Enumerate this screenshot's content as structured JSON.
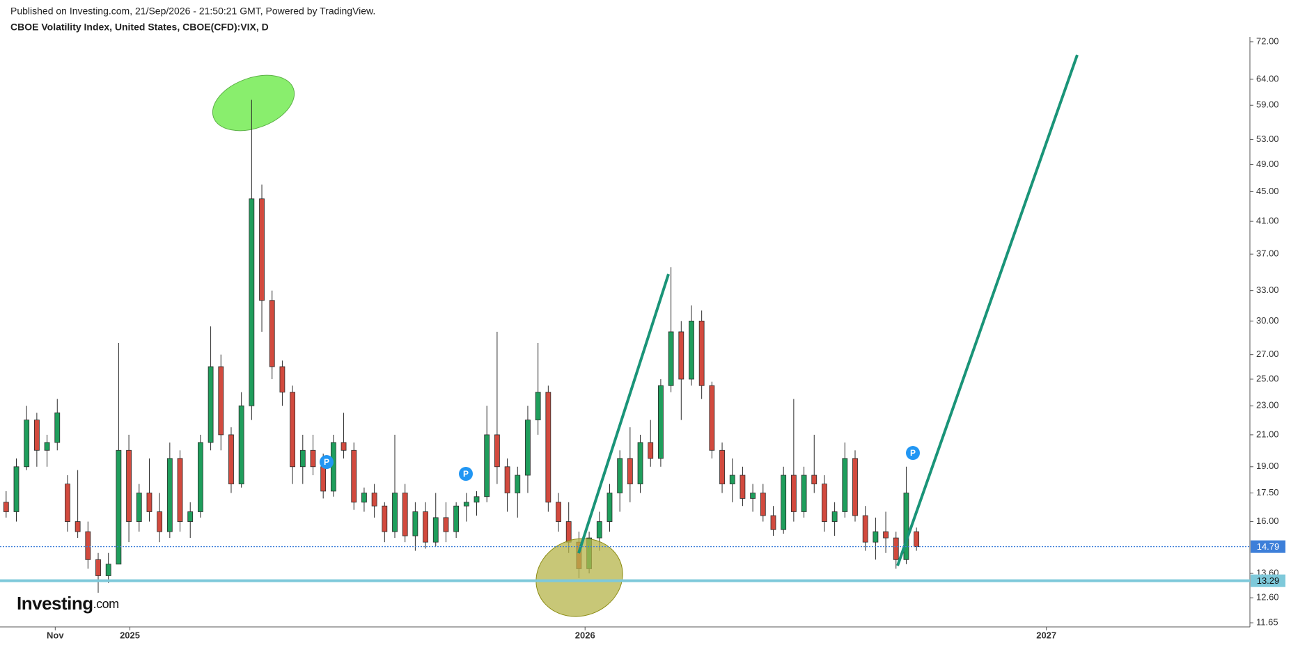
{
  "chart_data": {
    "type": "candlestick",
    "published": "Published on Investing.com, 21/Sep/2026 - 21:50:21 GMT, Powered by TradingView.",
    "title": "CBOE Volatility Index, United States, CBOE(CFD):VIX, D",
    "logo": [
      "Investing",
      ".com"
    ],
    "markers": [
      "P",
      "P",
      "P"
    ],
    "log_scale": true,
    "up_color": "#1f9e5c",
    "down_color": "#d24a3e",
    "open": [
      17,
      16.5,
      19,
      22,
      20,
      20.5,
      18,
      16,
      15.5,
      14.2,
      13.5,
      14,
      20,
      16,
      17.5,
      16.5,
      15.5,
      19.5,
      16,
      16.5,
      20.5,
      26,
      21,
      18,
      23,
      44,
      32,
      26,
      24,
      19,
      20,
      19,
      17.6,
      20.5,
      20,
      17,
      17.5,
      16.8,
      15.5,
      17.5,
      15.3,
      16.5,
      15,
      16.2,
      15.5,
      16.8,
      17,
      17.3,
      21,
      19,
      17.5,
      18.5,
      22,
      24,
      17,
      16,
      15,
      13.8,
      15.2,
      16,
      17.5,
      19.5,
      18,
      20.5,
      19.5,
      24.5,
      29,
      25,
      30,
      24.5,
      20,
      18,
      18.5,
      17.2,
      17.5,
      16.3,
      15.6,
      18.5,
      16.5,
      18.5,
      18,
      16,
      16.5,
      19.5,
      16.3,
      15,
      15.5,
      15.2,
      14.2,
      15.5
    ],
    "high": [
      17.6,
      19.5,
      23,
      22.5,
      21,
      23.5,
      18.5,
      18.8,
      16,
      14.5,
      14.5,
      28,
      21,
      18,
      19.5,
      17.5,
      20.5,
      20,
      17,
      21,
      29.5,
      27,
      21.5,
      24,
      60,
      46,
      33,
      26.5,
      24.5,
      21,
      21,
      19.8,
      21,
      22.5,
      20.5,
      17.8,
      18,
      17,
      21,
      18,
      17,
      17,
      17.5,
      17,
      17,
      17.5,
      17.6,
      23,
      29,
      19.5,
      19,
      23,
      28,
      24.5,
      17.5,
      17,
      15.5,
      15.5,
      16.5,
      18,
      20,
      21.5,
      21,
      22,
      25,
      35.5,
      30,
      31.5,
      31,
      24.8,
      20.5,
      19.5,
      19,
      18,
      18,
      16.8,
      19,
      23.5,
      19,
      21,
      18.5,
      17,
      20.5,
      20,
      16.8,
      16.2,
      16.5,
      15.5,
      19,
      15.7
    ],
    "low": [
      16.2,
      16,
      18.8,
      19,
      19,
      20,
      15.5,
      15.2,
      13.8,
      12.8,
      13.2,
      14,
      15,
      15.5,
      16,
      15,
      15.2,
      15.5,
      15.2,
      16.2,
      20,
      20,
      17.5,
      17.8,
      22,
      29,
      25,
      23,
      18,
      18,
      18.5,
      17.2,
      17.3,
      19.5,
      16.6,
      16.5,
      16.2,
      15,
      15.2,
      15,
      14.6,
      14.7,
      14.8,
      15,
      15.2,
      16,
      16.3,
      17,
      18,
      16.5,
      16.2,
      17.5,
      21,
      16.5,
      15.5,
      14.5,
      13.4,
      13.6,
      14.6,
      15.5,
      16.5,
      17,
      17.5,
      19,
      19,
      24,
      22,
      24.5,
      23.5,
      19.5,
      17.5,
      17,
      16.8,
      16.5,
      16,
      15.3,
      15.4,
      16,
      16.2,
      17.5,
      15.5,
      15.3,
      16.2,
      16,
      14.6,
      14.2,
      14.5,
      13.8,
      14,
      14.6
    ],
    "close": [
      16.5,
      19,
      22,
      20,
      20.5,
      22.5,
      16,
      15.5,
      14.2,
      13.5,
      14,
      20,
      16,
      17.5,
      16.5,
      15.5,
      19.5,
      16,
      16.5,
      20.5,
      26,
      21,
      18,
      23,
      44,
      32,
      26,
      24,
      19,
      20,
      19,
      17.6,
      20.5,
      20,
      17,
      17.5,
      16.8,
      15.5,
      17.5,
      15.3,
      16.5,
      15,
      16.2,
      15.5,
      16.8,
      17,
      17.3,
      21,
      19,
      17.5,
      18.5,
      22,
      24,
      17,
      16,
      15,
      13.8,
      15.2,
      16,
      17.5,
      19.5,
      18,
      20.5,
      19.5,
      24.5,
      29,
      25,
      30,
      24.5,
      20,
      18,
      18.5,
      17.2,
      17.5,
      16.3,
      15.6,
      18.5,
      16.5,
      18.5,
      18,
      16,
      16.5,
      19.5,
      16.3,
      15,
      15.5,
      15.2,
      14.2,
      17.5,
      14.79
    ],
    "xlim": [
      -0.6,
      121.6
    ],
    "xticks": [
      {
        "value": 4.8,
        "label": "Nov"
      },
      {
        "value": 12.1,
        "label": "2025"
      },
      {
        "value": 56.6,
        "label": "2026"
      },
      {
        "value": 101.7,
        "label": "2027"
      }
    ],
    "ylim": [
      11.5,
      73.1
    ],
    "yticks": [
      {
        "value": 11.65,
        "label": "11.65"
      },
      {
        "value": 12.6,
        "label": "12.60"
      },
      {
        "value": 13.6,
        "label": "13.60"
      },
      {
        "value": 16,
        "label": "16.00"
      },
      {
        "value": 17.5,
        "label": "17.50"
      },
      {
        "value": 19,
        "label": "19.00"
      },
      {
        "value": 21,
        "label": "21.00"
      },
      {
        "value": 23,
        "label": "23.00"
      },
      {
        "value": 25,
        "label": "25.00"
      },
      {
        "value": 27,
        "label": "27.00"
      },
      {
        "value": 30,
        "label": "30.00"
      },
      {
        "value": 33,
        "label": "33.00"
      },
      {
        "value": 37,
        "label": "37.00"
      },
      {
        "value": 41,
        "label": "41.00"
      },
      {
        "value": 45,
        "label": "45.00"
      },
      {
        "value": 49,
        "label": "49.00"
      },
      {
        "value": 53,
        "label": "53.00"
      },
      {
        "value": 59,
        "label": "59.00"
      },
      {
        "value": 64,
        "label": "64.00"
      },
      {
        "value": 72,
        "label": "72.00"
      }
    ],
    "price_lines": [
      {
        "value": 14.79,
        "color": "#3d7fd9",
        "text_color": "#ffffff",
        "dotted": true
      },
      {
        "value": 13.29,
        "color": "#7ec9da",
        "text_color": "#111111",
        "dotted": false
      }
    ]
  }
}
